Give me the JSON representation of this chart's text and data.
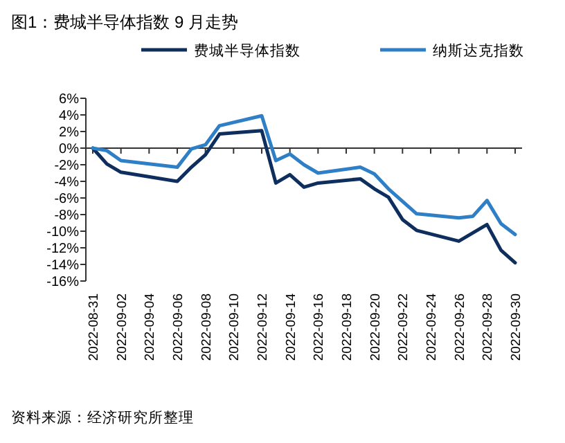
{
  "chart_data": {
    "type": "line",
    "title": "图1：费城半导体指数 9 月走势",
    "annotations": [
      "资料来源：经济研究所整理"
    ],
    "x": [
      "2022-08-31",
      "2022-09-01",
      "2022-09-02",
      "2022-09-06",
      "2022-09-07",
      "2022-09-08",
      "2022-09-09",
      "2022-09-12",
      "2022-09-13",
      "2022-09-14",
      "2022-09-15",
      "2022-09-16",
      "2022-09-19",
      "2022-09-20",
      "2022-09-21",
      "2022-09-22",
      "2022-09-23",
      "2022-09-26",
      "2022-09-27",
      "2022-09-28",
      "2022-09-29",
      "2022-09-30"
    ],
    "series": [
      {
        "name": "费城半导体指数",
        "color": "#0e2f5e",
        "values": [
          0,
          -1.9,
          -2.9,
          -4.0,
          -2.3,
          -0.8,
          1.7,
          2.1,
          -4.2,
          -3.2,
          -4.7,
          -4.2,
          -3.7,
          -4.9,
          -5.9,
          -8.6,
          -9.9,
          -11.2,
          -10.2,
          -9.2,
          -12.3,
          -13.8
        ]
      },
      {
        "name": "纳斯达克指数",
        "color": "#2f7fc6",
        "values": [
          0,
          -0.3,
          -1.5,
          -2.3,
          -0.1,
          0.4,
          2.7,
          3.9,
          -1.5,
          -0.7,
          -2.0,
          -3.0,
          -2.3,
          -3.1,
          -4.9,
          -6.4,
          -7.9,
          -8.4,
          -8.2,
          -6.3,
          -9.1,
          -10.4
        ]
      }
    ],
    "xlim": [
      "2022-08-31",
      "2022-09-30"
    ],
    "xticks": [
      "2022-08-31",
      "2022-09-02",
      "2022-09-04",
      "2022-09-06",
      "2022-09-08",
      "2022-09-10",
      "2022-09-12",
      "2022-09-14",
      "2022-09-16",
      "2022-09-18",
      "2022-09-20",
      "2022-09-22",
      "2022-09-24",
      "2022-09-26",
      "2022-09-28",
      "2022-09-30"
    ],
    "ylim": [
      -16,
      6
    ],
    "yticks": [
      {
        "value": 6,
        "label": "6%"
      },
      {
        "value": 4,
        "label": "4%"
      },
      {
        "value": 2,
        "label": "2%"
      },
      {
        "value": 0,
        "label": "0%"
      },
      {
        "value": -2,
        "label": "-2%"
      },
      {
        "value": -4,
        "label": "-4%"
      },
      {
        "value": -6,
        "label": "-6%"
      },
      {
        "value": -8,
        "label": "-8%"
      },
      {
        "value": -10,
        "label": "-10%"
      },
      {
        "value": -12,
        "label": "-12%"
      },
      {
        "value": -14,
        "label": "-14%"
      },
      {
        "value": -16,
        "label": "-16%"
      }
    ],
    "legend": "top",
    "marker": "none",
    "line_style": "solid"
  }
}
